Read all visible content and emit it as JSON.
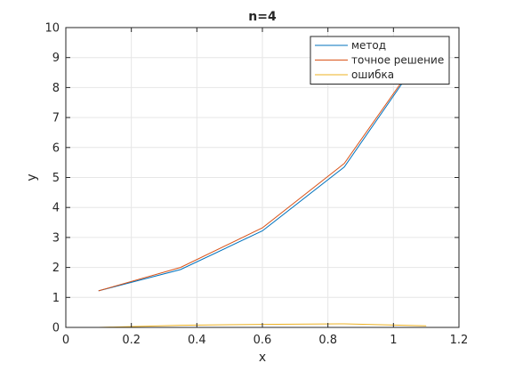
{
  "chart_data": {
    "type": "line",
    "title": "n=4",
    "xlabel": "x",
    "ylabel": "y",
    "xlim": [
      0,
      1.2
    ],
    "ylim": [
      0,
      10
    ],
    "xticks": [
      0,
      0.2,
      0.4,
      0.6,
      0.8,
      1,
      1.2
    ],
    "xtick_labels": [
      "0",
      "0.2",
      "0.4",
      "0.6",
      "0.8",
      "1",
      "1.2"
    ],
    "yticks": [
      0,
      1,
      2,
      3,
      4,
      5,
      6,
      7,
      8,
      9,
      10
    ],
    "ytick_labels": [
      "0",
      "1",
      "2",
      "3",
      "4",
      "5",
      "6",
      "7",
      "8",
      "9",
      "10"
    ],
    "grid": true,
    "legend_position": "top-right",
    "series": [
      {
        "name": "метод",
        "color": "#0072bd",
        "x": [
          0.1,
          0.35,
          0.6,
          0.85,
          1.1
        ],
        "y": [
          1.22,
          1.93,
          3.22,
          5.35,
          9.3
        ]
      },
      {
        "name": "точное решение",
        "color": "#d95319",
        "x": [
          0.1,
          0.35,
          0.6,
          0.85,
          1.1
        ],
        "y": [
          1.22,
          2.0,
          3.32,
          5.47,
          9.35
        ]
      },
      {
        "name": "ошибка",
        "color": "#edb120",
        "x": [
          0.1,
          0.35,
          0.6,
          0.85,
          1.1
        ],
        "y": [
          0.0,
          0.07,
          0.1,
          0.12,
          0.05
        ]
      }
    ]
  }
}
